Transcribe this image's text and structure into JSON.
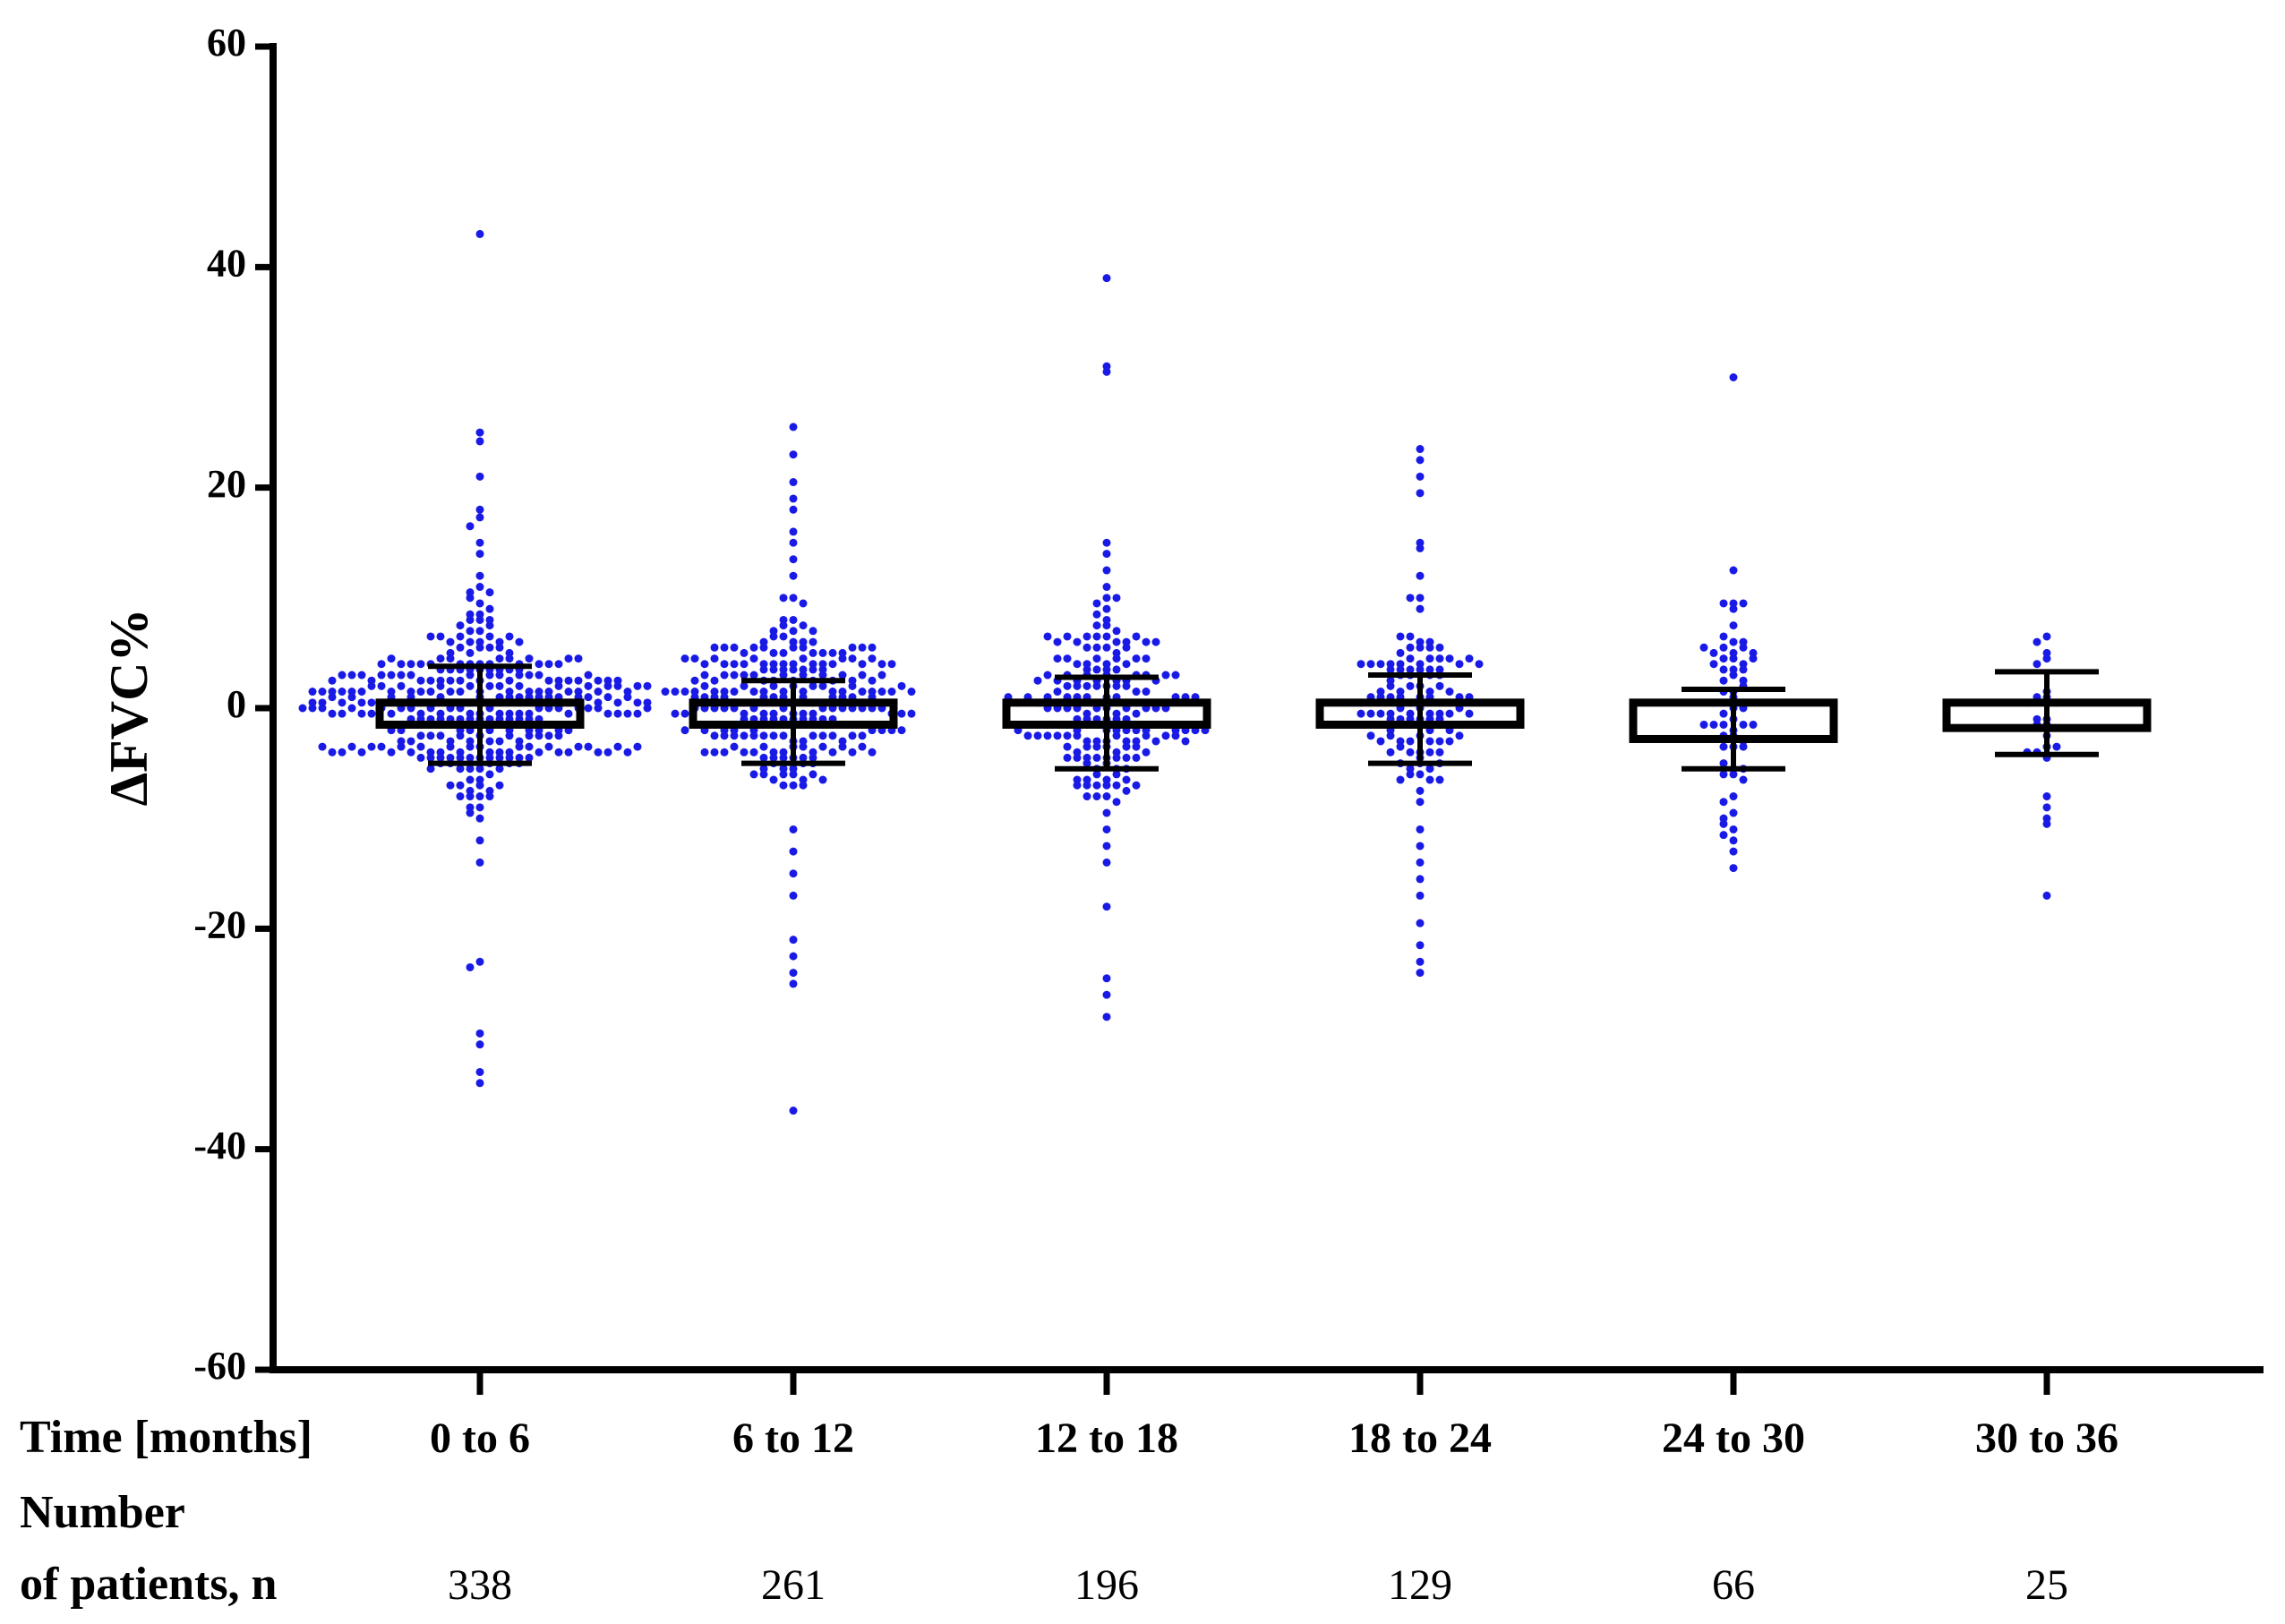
{
  "chart_data": {
    "type": "scatter",
    "subtype": "box-with-dot-plot",
    "ylabel": "ΔFVC%",
    "xlabel": "Time [months]",
    "ylim": [
      -60,
      60
    ],
    "yticks": [
      60,
      40,
      20,
      0,
      -20,
      -40,
      -60
    ],
    "ytick_labels": [
      "60",
      "40",
      "20",
      "0",
      "-20",
      "-40",
      "-60"
    ],
    "grid": false,
    "point_color": "#1a1ae6",
    "box_color": "#000000",
    "row_labels": {
      "time": "Time [months]",
      "number_line1": "Number",
      "number_line2": "of patients, n"
    },
    "categories": [
      {
        "label": "0 to 6",
        "n": "338",
        "q1": -1.5,
        "q3": 0.5,
        "whisker_low": -5,
        "whisker_high": 3.8,
        "outliers": [
          43,
          25,
          24.2,
          21,
          18,
          17.3,
          16.5,
          15,
          14,
          12,
          11,
          -23,
          -23.5,
          -29.5,
          -30.5,
          -33,
          -34,
          -14,
          -12,
          -10,
          -9
        ]
      },
      {
        "label": "6 to 12",
        "n": "261",
        "q1": -1.5,
        "q3": 0.5,
        "whisker_low": -5,
        "whisker_high": 2.5,
        "outliers": [
          25.5,
          23,
          20.5,
          19,
          18,
          16,
          15,
          13.5,
          12,
          10,
          -36.5,
          -25,
          -24,
          -22.5,
          -21,
          -17,
          -15,
          -13,
          -11
        ]
      },
      {
        "label": "12 to 18",
        "n": "196",
        "q1": -1.5,
        "q3": 0.5,
        "whisker_low": -5.5,
        "whisker_high": 2.8,
        "outliers": [
          39,
          31,
          30.5,
          15,
          14,
          12.5,
          11,
          10,
          -28,
          -26,
          -24.5,
          -18,
          -14,
          -12.5,
          -11
        ]
      },
      {
        "label": "18 to 24",
        "n": "129",
        "q1": -1.5,
        "q3": 0.5,
        "whisker_low": -5,
        "whisker_high": 3,
        "outliers": [
          23.5,
          22.5,
          21,
          19.5,
          15,
          14.5,
          12,
          10,
          9,
          -24,
          -23,
          -21.5,
          -19.5,
          -17,
          -15.5,
          -14,
          -12.5,
          -11
        ]
      },
      {
        "label": "24 to 30",
        "n": "66",
        "q1": -2.8,
        "q3": 0.5,
        "whisker_low": -5.5,
        "whisker_high": 1.7,
        "outliers": [
          30,
          9.5,
          6,
          5,
          -14.5,
          -12,
          -11,
          -9.5,
          -8
        ]
      },
      {
        "label": "30 to 36",
        "n": "25",
        "q1": -1.8,
        "q3": 0.5,
        "whisker_low": -4.2,
        "whisker_high": 3.3,
        "outliers": [
          6.5,
          5,
          4.5,
          4,
          -8,
          -10,
          -10.5,
          -17,
          -3.5,
          -4
        ]
      }
    ]
  }
}
